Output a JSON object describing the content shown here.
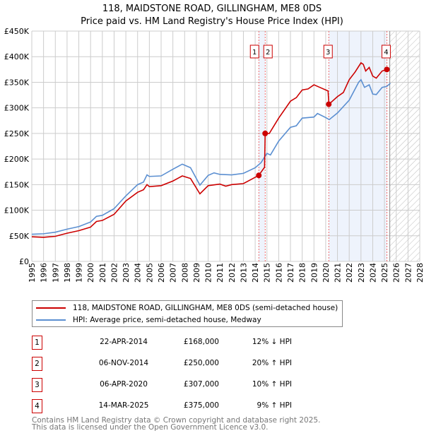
{
  "chart_data": {
    "type": "line",
    "title": "118, MAIDSTONE ROAD, GILLINGHAM, ME8 0DS",
    "subtitle": "Price paid vs. HM Land Registry's House Price Index (HPI)",
    "xlim": [
      1995,
      2028
    ],
    "ylim": [
      0,
      450000
    ],
    "xticks": [
      "1995",
      "1996",
      "1997",
      "1998",
      "1999",
      "2000",
      "2001",
      "2002",
      "2003",
      "2004",
      "2005",
      "2006",
      "2007",
      "2008",
      "2009",
      "2010",
      "2011",
      "2012",
      "2013",
      "2014",
      "2015",
      "2016",
      "2017",
      "2018",
      "2019",
      "2020",
      "2021",
      "2022",
      "2023",
      "2024",
      "2025",
      "2026",
      "2027",
      "2028"
    ],
    "yticks": [
      {
        "v": 0,
        "label": "£0"
      },
      {
        "v": 50000,
        "label": "£50K"
      },
      {
        "v": 100000,
        "label": "£100K"
      },
      {
        "v": 150000,
        "label": "£150K"
      },
      {
        "v": 200000,
        "label": "£200K"
      },
      {
        "v": 250000,
        "label": "£250K"
      },
      {
        "v": 300000,
        "label": "£300K"
      },
      {
        "v": 350000,
        "label": "£350K"
      },
      {
        "v": 400000,
        "label": "£400K"
      },
      {
        "v": 450000,
        "label": "£450K"
      }
    ],
    "grid": true,
    "shaded_ranges": [
      [
        2014.3,
        2014.85
      ],
      [
        2020.26,
        2025.2
      ]
    ],
    "forecast_hatch_from": 2025.45,
    "series": [
      {
        "name": "118, MAIDSTONE ROAD, GILLINGHAM, ME8 0DS (semi-detached house)",
        "color": "#cc0000",
        "x": [
          1995,
          1996,
          1997,
          1998,
          1999,
          2000,
          2000.5,
          2001,
          2002,
          2003,
          2004,
          2004.5,
          2004.8,
          2005,
          2006,
          2007,
          2007.8,
          2008.5,
          2009.3,
          2010,
          2011,
          2011.5,
          2012,
          2013,
          2014.3,
          2014.8,
          2014.85,
          2015.2,
          2016,
          2017,
          2017.5,
          2018,
          2018.5,
          2019,
          2019.5,
          2020.2,
          2020.27,
          2021,
          2021.5,
          2022,
          2022.5,
          2023,
          2023.2,
          2023.4,
          2023.7,
          2024,
          2024.3,
          2024.8,
          2025.2
        ],
        "y": [
          48000,
          47000,
          49000,
          55000,
          60000,
          67000,
          78000,
          80000,
          92000,
          118000,
          135000,
          140000,
          150000,
          146000,
          148000,
          157000,
          167000,
          162000,
          132000,
          148000,
          151000,
          147000,
          150000,
          152000,
          168000,
          184000,
          250000,
          250000,
          280000,
          313000,
          320000,
          335000,
          337000,
          345000,
          340000,
          333000,
          307000,
          322000,
          330000,
          355000,
          370000,
          388000,
          385000,
          372000,
          379000,
          362000,
          358000,
          372000,
          375000
        ]
      },
      {
        "name": "HPI: Average price, semi-detached house, Medway",
        "color": "#5b8fd1",
        "x": [
          1995,
          1996,
          1997,
          1998,
          1999,
          2000,
          2000.5,
          2001,
          2002,
          2003,
          2004,
          2004.5,
          2004.8,
          2005,
          2006,
          2007,
          2007.8,
          2008.5,
          2009.3,
          2010,
          2010.5,
          2011,
          2012,
          2013,
          2014,
          2014.5,
          2015,
          2015.3,
          2016,
          2017,
          2017.5,
          2018,
          2019,
          2019.3,
          2020,
          2020.3,
          2021,
          2022,
          2022.8,
          2023,
          2023.3,
          2023.7,
          2024,
          2024.3,
          2024.8,
          2025.2,
          2025.5
        ],
        "y": [
          53000,
          54000,
          57000,
          63000,
          68000,
          77000,
          88000,
          90000,
          103000,
          128000,
          150000,
          155000,
          169000,
          166000,
          167000,
          180000,
          190000,
          183000,
          149000,
          168000,
          173000,
          170000,
          169000,
          172000,
          183000,
          193000,
          211000,
          208000,
          235000,
          262000,
          265000,
          280000,
          282000,
          289000,
          281000,
          277000,
          290000,
          315000,
          350000,
          355000,
          340000,
          345000,
          327000,
          326000,
          340000,
          342000,
          348000
        ]
      }
    ],
    "sales": [
      {
        "id": "1",
        "x": 2014.31,
        "y": 168000,
        "date": "22-APR-2014",
        "price": "£168,000",
        "hpi": "12% ↓ HPI"
      },
      {
        "id": "2",
        "x": 2014.85,
        "y": 250000,
        "date": "06-NOV-2014",
        "price": "£250,000",
        "hpi": "20% ↑ HPI"
      },
      {
        "id": "3",
        "x": 2020.26,
        "y": 307000,
        "date": "06-APR-2020",
        "price": "£307,000",
        "hpi": "10% ↑ HPI"
      },
      {
        "id": "4",
        "x": 2025.2,
        "y": 375000,
        "date": "14-MAR-2025",
        "price": "£375,000",
        "hpi": "9% ↑ HPI"
      }
    ]
  },
  "footer": {
    "line1": "Contains HM Land Registry data © Crown copyright and database right 2025.",
    "line2": "This data is licensed under the Open Government Licence v3.0."
  }
}
